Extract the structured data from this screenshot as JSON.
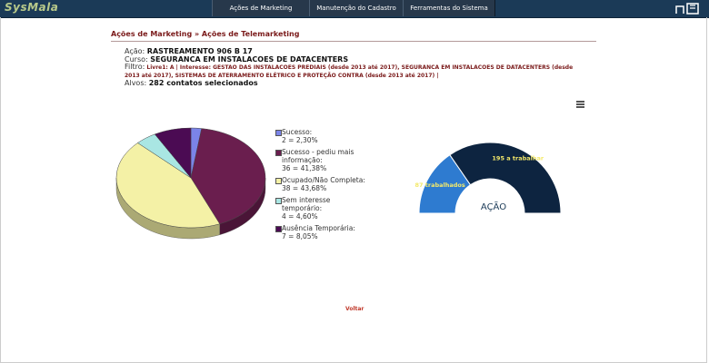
{
  "app": {
    "name": "SysMala"
  },
  "nav": {
    "items": [
      {
        "label": "Ações de Marketing"
      },
      {
        "label": "Manutenção do Cadastro"
      },
      {
        "label": "Ferramentas do Sistema"
      }
    ]
  },
  "breadcrumb": {
    "text": "Ações de Marketing » Ações de Telemarketing"
  },
  "details": {
    "acao_label": "Ação:",
    "acao_value": "RASTREAMENTO 906 B 17",
    "curso_label": "Curso:",
    "curso_value": "SEGURANCA EM INSTALACOES DE DATACENTERS",
    "filtro_label": "Filtro:",
    "filtro_value": "Livre1: A | Interesse: GESTAO DAS INSTALACOES PREDIAIS (desde 2013 até 2017), SEGURANCA EM INSTALACOES DE DATACENTERS (desde 2013 até 2017), SISTEMAS DE ATERRAMENTO ELÉTRICO E PROTEÇÃO CONTRA (desde 2013 até 2017) |",
    "alvos_label": "Alvos:",
    "alvos_value": "282 contatos selecionados"
  },
  "chart_data": [
    {
      "type": "pie",
      "categories": [
        "Sucesso",
        "Sucesso - pediu mais informação",
        "Ocupado/Não Completa",
        "Sem interesse temporário",
        "Ausência Temporária"
      ],
      "values": [
        2,
        36,
        38,
        4,
        7
      ],
      "legend_lines": [
        [
          "Sucesso:",
          "2 = 2,30%"
        ],
        [
          "Sucesso - pediu mais",
          "informação:",
          "36 = 41,38%"
        ],
        [
          "Ocupado/Não Completa:",
          "38 = 43,68%"
        ],
        [
          "Sem interesse",
          "temporário:",
          "4 = 4,60%"
        ],
        [
          "Ausência Temporária:",
          "7 = 8,05%"
        ]
      ],
      "colors": [
        "#7b84e8",
        "#6a1e4e",
        "#f4f1a6",
        "#a9e6e3",
        "#4b0b53"
      ],
      "legend": "right"
    },
    {
      "type": "pie",
      "title": "AÇÃO",
      "categories": [
        "trabalhados",
        "a trabalhar"
      ],
      "values": [
        87,
        195
      ],
      "data_labels": [
        "87 trabalhados",
        "195 a trabalhar"
      ],
      "colors": [
        "#2e7bd0",
        "#0d2440"
      ]
    }
  ],
  "footer": {
    "voltar": "Voltar"
  }
}
